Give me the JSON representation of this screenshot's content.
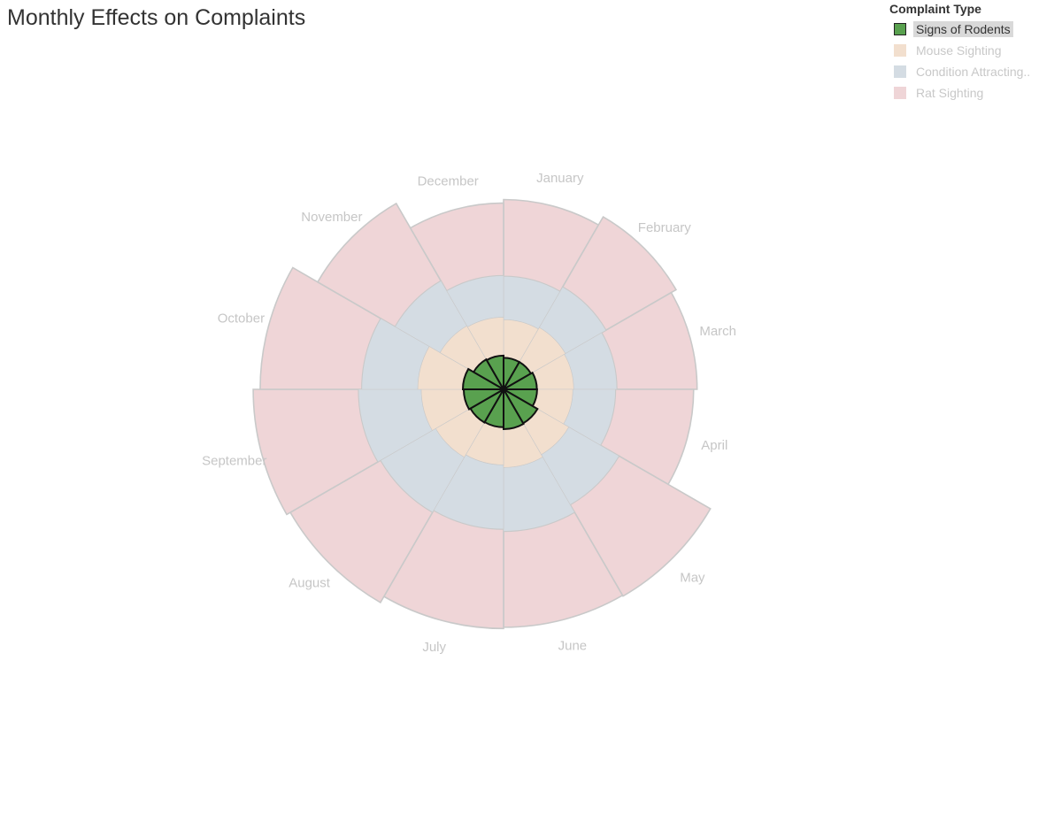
{
  "title": "Monthly Effects on Complaints",
  "legend": {
    "title": "Complaint Type",
    "items": [
      {
        "label": "Signs of Rodents",
        "color": "#59a14f",
        "state": "active"
      },
      {
        "label": "Mouse Sighting",
        "color": "#f2dfce",
        "state": "inactive"
      },
      {
        "label": "Condition Attracting..",
        "color": "#d4dce3",
        "state": "inactive"
      },
      {
        "label": "Rat Sighting",
        "color": "#efd5d7",
        "state": "inactive"
      }
    ]
  },
  "chart_data": {
    "type": "polar-area",
    "title": "Monthly Effects on Complaints",
    "legend_title": "Complaint Type",
    "legend_position": "top-right",
    "categories": [
      "January",
      "February",
      "March",
      "April",
      "May",
      "June",
      "July",
      "August",
      "September",
      "October",
      "November",
      "December"
    ],
    "series": [
      {
        "name": "Signs of Rodents",
        "color": "#59a14f",
        "values": [
          145,
          145,
          153,
          154,
          180,
          183,
          174,
          176,
          183,
          187,
          159,
          155
        ]
      },
      {
        "name": "Mouse Sighting",
        "color": "#f2dfce",
        "values": [
          175,
          183,
          169,
          164,
          166,
          176,
          173,
          184,
          195,
          207,
          178,
          176
        ]
      },
      {
        "name": "Condition Attracting..",
        "color": "#d4dce3",
        "values": [
          199,
          215,
          198,
          196,
          266,
          293,
          295,
          292,
          288,
          257,
          238,
          191
        ]
      },
      {
        "name": "Rat Sighting",
        "color": "#efd5d7",
        "values": [
          353,
          372,
          369,
          359,
          485,
          441,
          457,
          479,
          484,
          467,
          411,
          334
        ]
      }
    ]
  }
}
